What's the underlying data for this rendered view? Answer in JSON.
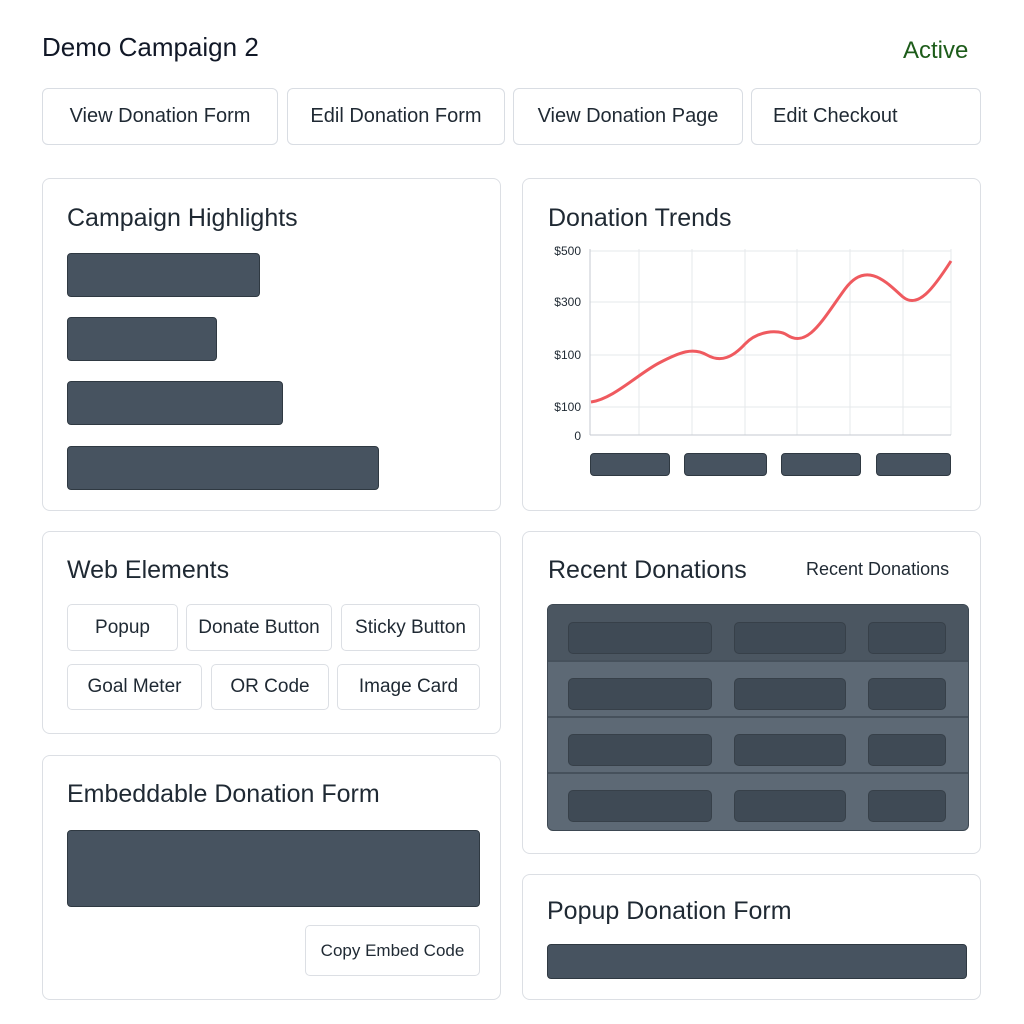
{
  "header": {
    "title": "Demo Campaign 2",
    "status": "Active",
    "status_color": "#1d5c1a"
  },
  "actions": [
    {
      "label": "View Donation Form"
    },
    {
      "label": "Edil Donation Form"
    },
    {
      "label": "View Donation Page"
    },
    {
      "label": "Edit Checkout"
    }
  ],
  "highlights": {
    "title": "Campaign Highlights"
  },
  "trends": {
    "title": "Donation Trends",
    "y_ticks": [
      "$500",
      "$300",
      "$100",
      "$100",
      "0"
    ]
  },
  "web_elements": {
    "title": "Web Elements",
    "items": [
      "Popup",
      "Donate Button",
      "Sticky Button",
      "Goal Meter",
      "OR Code",
      "Image Card"
    ]
  },
  "recent": {
    "title": "Recent Donations",
    "link": "Recent Donations"
  },
  "embed": {
    "title": "Embeddable Donation Form",
    "copy_label": "Copy Embed Code"
  },
  "popup_form": {
    "title": "Popup Donation Form"
  },
  "colors": {
    "line": "#ef5a5f",
    "placeholder": "#475360"
  }
}
